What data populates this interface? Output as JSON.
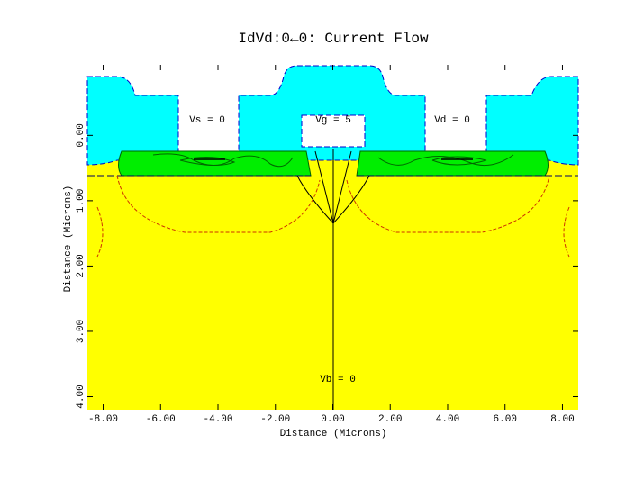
{
  "chart_data": {
    "type": "device-cross-section",
    "title": "IdVd:0←0: Current Flow",
    "x_label": "Distance (Microns)",
    "y_label": "Distance (Microns)",
    "xlim": [
      -8.55,
      8.55
    ],
    "ylim": [
      -1.08,
      4.2
    ],
    "y_inverted": true,
    "xticks": [
      {
        "value": -8,
        "label": "-8.00"
      },
      {
        "value": -6,
        "label": "-6.00"
      },
      {
        "value": -4,
        "label": "-4.00"
      },
      {
        "value": -2,
        "label": "-2.00"
      },
      {
        "value": 0,
        "label": "0.00"
      },
      {
        "value": 2,
        "label": "2.00"
      },
      {
        "value": 4,
        "label": "4.00"
      },
      {
        "value": 6,
        "label": "6.00"
      },
      {
        "value": 8,
        "label": "8.00"
      }
    ],
    "yticks": [
      {
        "value": 0,
        "label": "0.00"
      },
      {
        "value": 1,
        "label": "1.00"
      },
      {
        "value": 2,
        "label": "2.00"
      },
      {
        "value": 3,
        "label": "3.00"
      },
      {
        "value": 4,
        "label": "4.00"
      }
    ],
    "annotations": [
      "Vs = 0",
      "Vg = 5",
      "Vd = 0",
      "Vb = 0"
    ]
  }
}
